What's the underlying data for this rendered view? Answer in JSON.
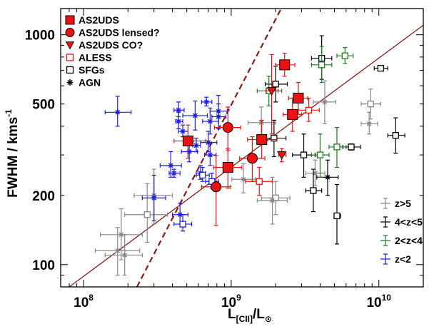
{
  "chart_data": {
    "type": "scatter",
    "x_scale": "log",
    "y_scale": "log",
    "xlim": [
      70000000,
      20000000000
    ],
    "ylim": [
      80,
      1300
    ],
    "xlabel_main": "L",
    "xlabel_sub": "[CII]",
    "xlabel_slash": "/L",
    "xlabel_sun": "⊙",
    "ylabel_main": "FWHM / kms",
    "ylabel_sup": "-1",
    "x_ticks": [
      {
        "value": 100000000,
        "base": "10",
        "exp": "8"
      },
      {
        "value": 1000000000,
        "base": "10",
        "exp": "9"
      },
      {
        "value": 10000000000,
        "base": "10",
        "exp": "10"
      }
    ],
    "y_ticks": [
      {
        "value": 100,
        "label": "100"
      },
      {
        "value": 200,
        "label": "200"
      },
      {
        "value": 500,
        "label": "500"
      },
      {
        "value": 1000,
        "label": "1000"
      }
    ],
    "grid": false,
    "colors": {
      "red": "#ee1111",
      "darkred": "#8b1a1a",
      "gray": "#888888",
      "black": "#000000",
      "green": "#1f7a1f",
      "blue": "#1a1aee"
    },
    "legend_top_left": [
      {
        "label": "AS2UDS",
        "marker": "filled-square",
        "color": "#ee1111"
      },
      {
        "label": "AS2UDS lensed?",
        "marker": "filled-circle",
        "color": "#ee1111"
      },
      {
        "label": "AS2UDS CO?",
        "marker": "filled-triangle-down",
        "color": "#ee1111"
      },
      {
        "label": "ALESS",
        "marker": "open-square",
        "color": "#ee1111"
      },
      {
        "label": "SFGs",
        "marker": "open-square",
        "color": "#000000"
      },
      {
        "label": "AGN",
        "marker": "asterisk",
        "color": "#000000"
      }
    ],
    "legend_bottom_right": [
      {
        "label": "z>5",
        "color": "#888888"
      },
      {
        "label": "4<z<5",
        "color": "#000000"
      },
      {
        "label": "2<z<4",
        "color": "#1f7a1f"
      },
      {
        "label": "z<2",
        "color": "#1a1aee"
      }
    ],
    "lines": [
      {
        "name": "solid-fit",
        "style": "solid",
        "color": "#8b1a1a",
        "points": [
          [
            80000000,
            80
          ],
          [
            20000000000,
            1100
          ]
        ]
      },
      {
        "name": "dashed-fit",
        "style": "dashed",
        "color": "#8b1a1a",
        "points": [
          [
            230000000,
            80
          ],
          [
            2180000000,
            1300
          ]
        ]
      }
    ],
    "series": [
      {
        "name": "AS2UDS",
        "marker": "filled-square",
        "color": "#ee1111",
        "points": [
          {
            "x": 510000000,
            "y": 345,
            "xerr": [
              100000000,
              160000000
            ],
            "yerr": [
              55,
              60
            ]
          },
          {
            "x": 950000000,
            "y": 265,
            "xerr": [
              190000000,
              230000000
            ],
            "yerr": [
              50,
              55
            ]
          },
          {
            "x": 1610000000,
            "y": 350,
            "xerr": [
              320000000,
              420000000
            ],
            "yerr": [
              60,
              75
            ]
          },
          {
            "x": 2300000000,
            "y": 740,
            "xerr": [
              300000000,
              400000000
            ],
            "yerr": [
              80,
              90
            ]
          },
          {
            "x": 2600000000,
            "y": 450,
            "xerr": [
              350000000,
              400000000
            ],
            "yerr": [
              70,
              80
            ]
          },
          {
            "x": 2850000000,
            "y": 530,
            "xerr": [
              400000000,
              450000000
            ],
            "yerr": [
              80,
              90
            ]
          }
        ]
      },
      {
        "name": "AS2UDS lensed?",
        "marker": "filled-circle",
        "color": "#ee1111",
        "points": [
          {
            "x": 790000000,
            "y": 218,
            "xerr": [
              160000000,
              200000000
            ],
            "yerr": [
              70,
              80
            ]
          },
          {
            "x": 950000000,
            "y": 395,
            "xerr": [
              180000000,
              210000000
            ],
            "yerr": [
              80,
              90
            ]
          },
          {
            "x": 1390000000,
            "y": 290,
            "xerr": [
              250000000,
              300000000
            ],
            "yerr": [
              60,
              70
            ]
          }
        ]
      },
      {
        "name": "AS2UDS CO?",
        "marker": "filled-triangle-down",
        "color": "#ee1111",
        "points": [
          {
            "x": 1880000000,
            "y": 570,
            "xerr": [
              150000000,
              200000000
            ],
            "yerr": [
              200,
              250
            ]
          },
          {
            "x": 2200000000,
            "y": 300,
            "xerr": [
              100000000,
              150000000
            ],
            "yerr": [
              20,
              20
            ]
          }
        ]
      },
      {
        "name": "ALESS",
        "marker": "open-square",
        "color": "#ee1111",
        "points": [
          {
            "x": 1550000000,
            "y": 230,
            "xerr": [
              300000000,
              350000000
            ],
            "yerr": [
              30,
              35
            ]
          },
          {
            "x": 3350000000,
            "y": 470,
            "xerr": [
              500000000,
              600000000
            ],
            "yerr": [
              50,
              60
            ]
          }
        ]
      },
      {
        "name": "SFGs z>5",
        "marker": "open-square",
        "color": "#888888",
        "points": [
          {
            "x": 270000000,
            "y": 165,
            "xerr": [
              80000000,
              100000000
            ],
            "yerr": [
              40,
              60
            ]
          },
          {
            "x": 2000000000,
            "y": 195,
            "xerr": [
              400000000,
              500000000
            ],
            "yerr": [
              30,
              35
            ]
          },
          {
            "x": 8800000000,
            "y": 500,
            "xerr": [
              1200000000,
              1500000000
            ],
            "yerr": [
              70,
              80
            ]
          }
        ]
      },
      {
        "name": "AGN z>5",
        "marker": "asterisk",
        "color": "#888888",
        "points": [
          {
            "x": 170000000,
            "y": 115,
            "xerr": [
              50000000,
              70000000
            ],
            "yerr": [
              25,
              30
            ]
          },
          {
            "x": 180000000,
            "y": 135,
            "xerr": [
              50000000,
              70000000
            ],
            "yerr": [
              30,
              40
            ]
          },
          {
            "x": 190000000,
            "y": 110,
            "xerr": [
              50000000,
              60000000
            ],
            "yerr": [
              20,
              25
            ]
          },
          {
            "x": 300000000,
            "y": 200,
            "xerr": [
              80000000,
              100000000
            ],
            "yerr": [
              50,
              60
            ]
          },
          {
            "x": 1210000000,
            "y": 235,
            "xerr": [
              200000000,
              250000000
            ],
            "yerr": [
              30,
              40
            ]
          },
          {
            "x": 1900000000,
            "y": 190,
            "xerr": [
              400000000,
              500000000
            ],
            "yerr": [
              40,
              50
            ]
          },
          {
            "x": 3700000000,
            "y": 250,
            "xerr": [
              500000000,
              600000000
            ],
            "yerr": [
              30,
              35
            ]
          },
          {
            "x": 4300000000,
            "y": 510,
            "xerr": [
              700000000,
              800000000
            ],
            "yerr": [
              100,
              120
            ]
          },
          {
            "x": 8600000000,
            "y": 410,
            "xerr": [
              1000000000,
              1200000000
            ],
            "yerr": [
              40,
              50
            ]
          },
          {
            "x": 1600000000,
            "y": 415,
            "xerr": [
              300000000,
              400000000
            ],
            "yerr": [
              60,
              70
            ]
          }
        ]
      },
      {
        "name": "SFGs 4<z<5",
        "marker": "open-square",
        "color": "#000000",
        "points": [
          {
            "x": 2000000000,
            "y": 610,
            "xerr": [
              300000000,
              400000000
            ],
            "yerr": [
              100,
              120
            ]
          },
          {
            "x": 1950000000,
            "y": 355,
            "xerr": [
              300000000,
              400000000
            ],
            "yerr": [
              60,
              70
            ]
          },
          {
            "x": 3100000000,
            "y": 300,
            "xerr": [
              500000000,
              600000000
            ],
            "yerr": [
              60,
              70
            ]
          },
          {
            "x": 3600000000,
            "y": 210,
            "xerr": [
              400000000,
              500000000
            ],
            "yerr": [
              40,
              50
            ]
          },
          {
            "x": 4100000000,
            "y": 790,
            "xerr": [
              600000000,
              700000000
            ],
            "yerr": [
              150,
              200
            ]
          },
          {
            "x": 5200000000,
            "y": 163,
            "xerr": [
              200000000,
              300000000
            ],
            "yerr": [
              40,
              60
            ]
          },
          {
            "x": 6500000000,
            "y": 325,
            "xerr": [
              800000000,
              1000000000
            ],
            "yerr": [
              10,
              10
            ]
          },
          {
            "x": 10300000000,
            "y": 715,
            "xerr": [
              1000000000,
              1200000000
            ],
            "yerr": [
              15,
              15
            ]
          },
          {
            "x": 13000000000,
            "y": 365,
            "xerr": [
              1500000000,
              2000000000
            ],
            "yerr": [
              60,
              70
            ]
          }
        ]
      },
      {
        "name": "AGN 4<z<5",
        "marker": "asterisk",
        "color": "#000000",
        "points": [
          {
            "x": 4500000000,
            "y": 240,
            "xerr": [
              700000000,
              800000000
            ],
            "yerr": [
              40,
              45
            ]
          }
        ]
      },
      {
        "name": "SFGs 2<z<4",
        "marker": "open-square",
        "color": "#1f7a1f",
        "points": [
          {
            "x": 4000000000,
            "y": 300,
            "xerr": [
              500000000,
              600000000
            ],
            "yerr": [
              60,
              70
            ]
          },
          {
            "x": 5200000000,
            "y": 325,
            "xerr": [
              600000000,
              800000000
            ],
            "yerr": [
              60,
              70
            ]
          },
          {
            "x": 4100000000,
            "y": 740,
            "xerr": [
              600000000,
              700000000
            ],
            "yerr": [
              120,
              150
            ]
          },
          {
            "x": 5900000000,
            "y": 810,
            "xerr": [
              700000000,
              800000000
            ],
            "yerr": [
              60,
              70
            ]
          },
          {
            "x": 1800000000,
            "y": 570,
            "xerr": [
              300000000,
              400000000
            ],
            "yerr": [
              80,
              90
            ]
          }
        ]
      },
      {
        "name": "AGN z<2",
        "marker": "asterisk",
        "color": "#1a1aee",
        "points": [
          {
            "x": 170000000,
            "y": 460,
            "xerr": [
              30000000,
              40000000
            ],
            "yerr": [
              60,
              80
            ]
          },
          {
            "x": 390000000,
            "y": 270,
            "xerr": [
              60000000,
              70000000
            ],
            "yerr": [
              30,
              40
            ]
          },
          {
            "x": 410000000,
            "y": 250,
            "xerr": [
              30000000,
              40000000
            ],
            "yerr": [
              10,
              10
            ]
          },
          {
            "x": 440000000,
            "y": 470,
            "xerr": [
              30000000,
              40000000
            ],
            "yerr": [
              30,
              40
            ]
          },
          {
            "x": 440000000,
            "y": 420,
            "xerr": [
              20000000,
              30000000
            ],
            "yerr": [
              30,
              40
            ]
          },
          {
            "x": 470000000,
            "y": 380,
            "xerr": [
              30000000,
              40000000
            ],
            "yerr": [
              20,
              25
            ]
          },
          {
            "x": 570000000,
            "y": 445,
            "xerr": [
              100000000,
              120000000
            ],
            "yerr": [
              60,
              70
            ]
          },
          {
            "x": 720000000,
            "y": 420,
            "xerr": [
              80000000,
              100000000
            ],
            "yerr": [
              50,
              60
            ]
          },
          {
            "x": 820000000,
            "y": 465,
            "xerr": [
              100000000,
              120000000
            ],
            "yerr": [
              70,
              80
            ]
          },
          {
            "x": 520000000,
            "y": 310,
            "xerr": [
              60000000,
              70000000
            ],
            "yerr": [
              30,
              35
            ]
          },
          {
            "x": 580000000,
            "y": 330,
            "xerr": [
              30000000,
              40000000
            ],
            "yerr": [
              20,
              25
            ]
          },
          {
            "x": 700000000,
            "y": 340,
            "xerr": [
              80000000,
              100000000
            ],
            "yerr": [
              30,
              40
            ]
          },
          {
            "x": 720000000,
            "y": 300,
            "xerr": [
              60000000,
              70000000
            ],
            "yerr": [
              30,
              35
            ]
          },
          {
            "x": 820000000,
            "y": 440,
            "xerr": [
              80000000,
              100000000
            ],
            "yerr": [
              50,
              60
            ]
          },
          {
            "x": 680000000,
            "y": 510,
            "xerr": [
              50000000,
              60000000
            ],
            "yerr": [
              20,
              25
            ]
          },
          {
            "x": 300000000,
            "y": 195,
            "xerr": [
              50000000,
              60000000
            ],
            "yerr": [
              40,
              50
            ]
          },
          {
            "x": 450000000,
            "y": 165,
            "xerr": [
              50000000,
              60000000
            ],
            "yerr": [
              15,
              20
            ]
          },
          {
            "x": 620000000,
            "y": 250,
            "xerr": [
              40000000,
              50000000
            ],
            "yerr": [
              15,
              20
            ]
          }
        ]
      },
      {
        "name": "SFGs z<2",
        "marker": "open-square",
        "color": "#1a1aee",
        "points": [
          {
            "x": 470000000,
            "y": 150,
            "xerr": [
              60000000,
              70000000
            ],
            "yerr": [
              10,
              15
            ]
          },
          {
            "x": 640000000,
            "y": 245,
            "xerr": [
              60000000,
              70000000
            ],
            "yerr": [
              15,
              20
            ]
          },
          {
            "x": 740000000,
            "y": 230,
            "xerr": [
              70000000,
              80000000
            ],
            "yerr": [
              15,
              20
            ]
          }
        ]
      }
    ]
  }
}
